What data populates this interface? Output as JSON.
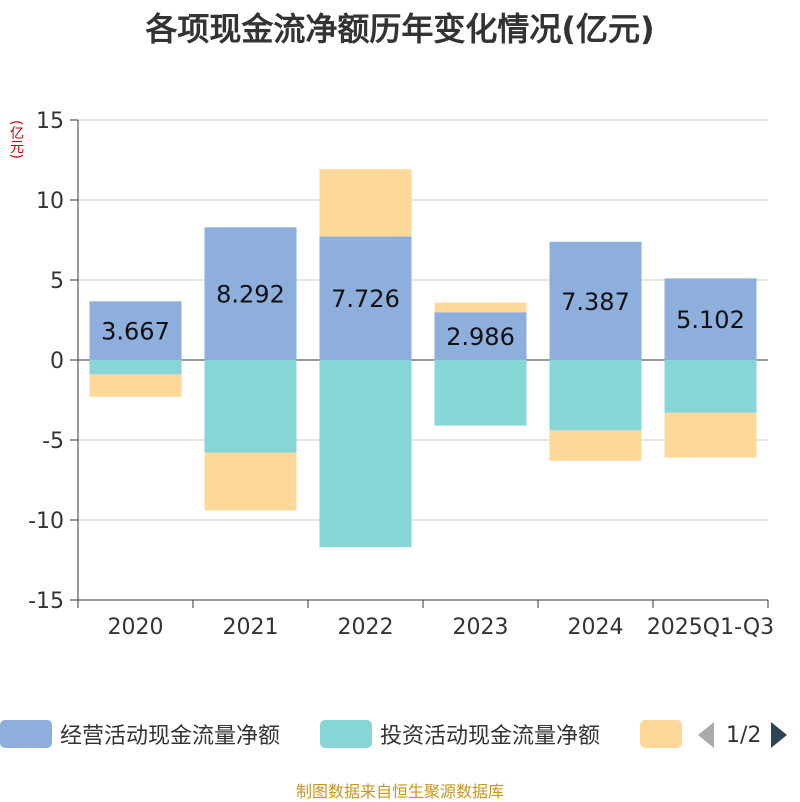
{
  "chart_data": {
    "type": "bar",
    "stacked": true,
    "title": "各项现金流净额历年变化情况(亿元)",
    "ylabel": "(亿元)",
    "ylim": [
      -15,
      15
    ],
    "yticks": [
      15,
      10,
      5,
      0,
      -5,
      -10,
      -15
    ],
    "categories": [
      "2020",
      "2021",
      "2022",
      "2023",
      "2024",
      "2025Q1-Q3"
    ],
    "series": [
      {
        "name": "经营活动现金流量净额",
        "color": "#8eaedb",
        "values": [
          3.667,
          8.292,
          7.726,
          2.986,
          7.387,
          5.102
        ],
        "labels": [
          "3.667",
          "8.292",
          "7.726",
          "2.986",
          "7.387",
          "5.102"
        ]
      },
      {
        "name": "投资活动现金流量净额",
        "color": "#86d6d8",
        "values": [
          -0.9,
          -5.8,
          -11.7,
          -4.1,
          -4.4,
          -3.3
        ]
      },
      {
        "name": "",
        "color": "#fed898",
        "values": [
          -1.4,
          -3.6,
          4.2,
          0.6,
          -1.9,
          -2.8
        ]
      }
    ]
  },
  "legend": {
    "items": [
      {
        "label": "经营活动现金流量净额",
        "color": "#8eaedb"
      },
      {
        "label": "投资活动现金流量净额",
        "color": "#86d6d8"
      },
      {
        "label": "",
        "color": "#fed898"
      }
    ],
    "page": "1/2"
  },
  "source": "制图数据来自恒生聚源数据库"
}
